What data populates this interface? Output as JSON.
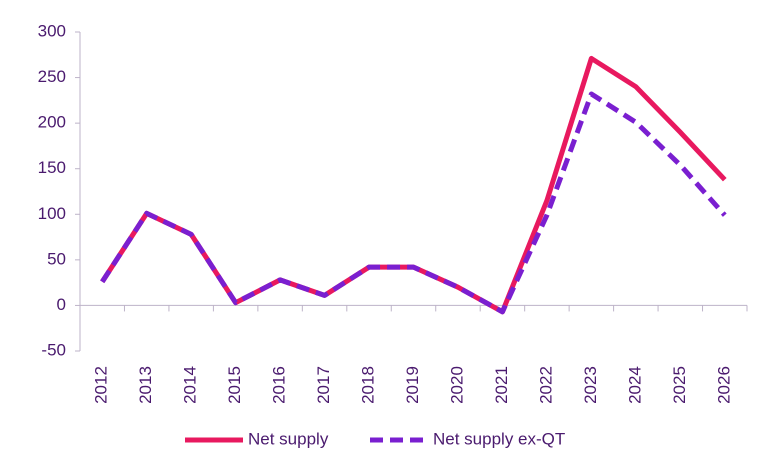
{
  "chart_data": {
    "type": "line",
    "categories": [
      "2012",
      "2013",
      "2014",
      "2015",
      "2016",
      "2017",
      "2018",
      "2019",
      "2020",
      "2021",
      "2022",
      "2023",
      "2024",
      "2025",
      "2026"
    ],
    "series": [
      {
        "name": "Net supply",
        "color": "#e8195f",
        "dash": false,
        "values": [
          26,
          101,
          78,
          3,
          28,
          11,
          42,
          42,
          20,
          -7,
          115,
          271,
          240,
          190,
          138
        ]
      },
      {
        "name": "Net supply ex-QT",
        "color": "#7a1fd0",
        "dash": true,
        "values": [
          26,
          101,
          78,
          3,
          28,
          11,
          42,
          42,
          20,
          -7,
          99,
          232,
          201,
          154,
          99
        ]
      }
    ],
    "ylim": [
      -50,
      300
    ],
    "yticks": [
      -50,
      0,
      50,
      100,
      150,
      200,
      250,
      300
    ],
    "grid": false,
    "legend": "bottom"
  }
}
